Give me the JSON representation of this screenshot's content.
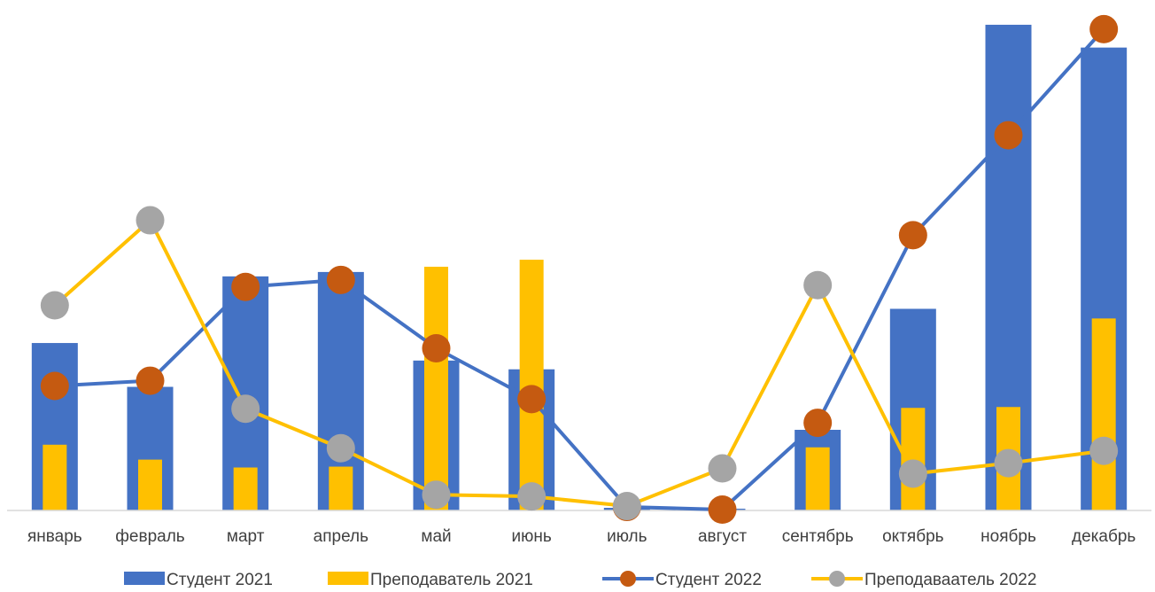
{
  "chart_data": {
    "type": "bar",
    "categories": [
      "январь",
      "февраль",
      "март",
      "апрель",
      "май",
      "июнь",
      "июль",
      "август",
      "сентябрь",
      "октябрь",
      "ноябрь",
      "декабрь"
    ],
    "ylim": [
      0,
      560
    ],
    "grid": false,
    "legend_position": "bottom",
    "series": [
      {
        "name": "Студент 2021",
        "kind": "bar",
        "color": "#4472C4",
        "values": [
          191,
          141,
          267,
          272,
          171,
          161,
          3,
          2,
          92,
          230,
          554,
          528
        ]
      },
      {
        "name": "Преподаватель 2021",
        "kind": "bar",
        "color": "#FFC000",
        "values": [
          75,
          58,
          49,
          50,
          278,
          286,
          1,
          1,
          72,
          117,
          118,
          219
        ]
      },
      {
        "name": "Студент 2022",
        "kind": "line",
        "color": "#4472C4",
        "marker_color": "#C55A11",
        "values": [
          142,
          148,
          255,
          263,
          185,
          127,
          4,
          1,
          100,
          314,
          428,
          549
        ]
      },
      {
        "name": "Преподаваатель 2022",
        "kind": "line",
        "color": "#FFC000",
        "marker_color": "#A5A5A5",
        "values": [
          234,
          331,
          116,
          71,
          18,
          16,
          5,
          48,
          257,
          42,
          54,
          68
        ]
      }
    ]
  }
}
